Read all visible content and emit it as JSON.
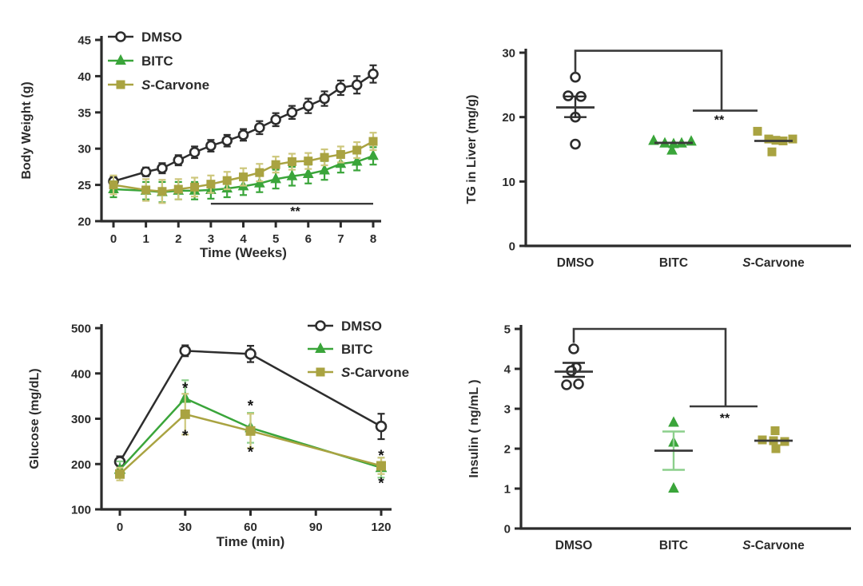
{
  "figure": {
    "background": "#ffffff",
    "colors": {
      "dmso": "#2d2d2d",
      "bitc": "#3aa53a",
      "bitc_light": "#8ccf8c",
      "scarvone": "#a9a341",
      "scarvone_light": "#cdc77c",
      "axis": "#2b2b2b",
      "stat": "#3a3a3a",
      "annotation": "#141414"
    }
  },
  "chart_data": [
    {
      "id": "body_weight",
      "type": "line",
      "title": "",
      "ylabel": "Body Weight (g)",
      "xlabel": "Time (Weeks)",
      "ylim": [
        20,
        45
      ],
      "yticks": [
        20,
        25,
        30,
        35,
        40,
        45
      ],
      "xlim": [
        0,
        8
      ],
      "xticks": [
        0,
        1,
        2,
        3,
        4,
        5,
        6,
        7,
        8
      ],
      "legend_position": "top-left-inside",
      "x": [
        0,
        1,
        1.5,
        2,
        2.5,
        3,
        3.5,
        4,
        4.5,
        5,
        5.5,
        6,
        6.5,
        7,
        7.5,
        8
      ],
      "series": [
        {
          "name": "DMSO",
          "marker": "circle-open",
          "color_key": "dmso",
          "error_color_key": "dmso",
          "values": [
            25.5,
            26.8,
            27.3,
            28.4,
            29.5,
            30.4,
            31.1,
            31.9,
            32.9,
            34.0,
            35.0,
            35.9,
            36.9,
            38.4,
            38.8,
            40.3
          ],
          "errors": [
            0.6,
            0.6,
            0.7,
            0.7,
            0.8,
            0.8,
            0.8,
            0.8,
            0.9,
            0.9,
            0.9,
            1.0,
            1.0,
            1.0,
            1.2,
            1.2
          ]
        },
        {
          "name": "BITC",
          "marker": "triangle",
          "color_key": "bitc",
          "error_color_key": "bitc",
          "values": [
            24.4,
            24.2,
            24.0,
            24.2,
            24.2,
            24.3,
            24.5,
            24.8,
            25.2,
            25.8,
            26.2,
            26.5,
            27.0,
            27.9,
            28.2,
            29.0
          ],
          "errors": [
            1.1,
            1.2,
            1.4,
            1.2,
            1.2,
            1.2,
            1.2,
            1.2,
            1.2,
            1.3,
            1.3,
            1.3,
            1.3,
            1.2,
            1.2,
            1.2
          ]
        },
        {
          "name": "S-Carvone",
          "marker": "square",
          "color_key": "scarvone",
          "error_color_key": "scarvone_light",
          "values": [
            25.0,
            24.3,
            24.1,
            24.4,
            24.7,
            25.1,
            25.6,
            26.1,
            26.7,
            27.8,
            28.2,
            28.3,
            28.8,
            29.2,
            29.8,
            31.0
          ],
          "errors": [
            1.3,
            1.5,
            1.6,
            1.4,
            1.3,
            1.2,
            1.2,
            1.2,
            1.2,
            1.1,
            1.1,
            1.1,
            1.1,
            1.1,
            1.1,
            1.2
          ]
        }
      ],
      "significance": {
        "label": "**",
        "x1": 3,
        "x2": 8,
        "y": 22.4,
        "label_x": 5.6,
        "label_y": 21.3
      }
    },
    {
      "id": "tg_liver",
      "type": "scatter",
      "title": "",
      "ylabel": "TG in Liver (mg/g)",
      "ylim": [
        0,
        30
      ],
      "yticks": [
        0,
        10,
        20,
        30
      ],
      "categories": [
        "DMSO",
        "BITC",
        "S-Carvone"
      ],
      "groups": [
        {
          "name": "DMSO",
          "marker": "circle-open",
          "color_key": "dmso",
          "error_color_key": "dmso",
          "points": [
            [
              0,
              26.2
            ],
            [
              -9,
              23.3
            ],
            [
              7,
              23.2
            ],
            [
              0,
              20.0
            ],
            [
              0,
              15.8
            ]
          ],
          "mean": 21.5,
          "err_low": 20.0,
          "err_high": 23.2
        },
        {
          "name": "BITC",
          "marker": "triangle",
          "color_key": "bitc",
          "points": [
            [
              -25,
              16.3
            ],
            [
              -11,
              15.9
            ],
            [
              0,
              15.8
            ],
            [
              10,
              15.9
            ],
            [
              22,
              16.2
            ],
            [
              -2,
              14.8
            ]
          ],
          "mean": 16.0
        },
        {
          "name": "S-Carvone",
          "marker": "square",
          "color_key": "scarvone",
          "points": [
            [
              -20,
              17.8
            ],
            [
              -6,
              16.6
            ],
            [
              3,
              16.4
            ],
            [
              12,
              16.3
            ],
            [
              24,
              16.6
            ],
            [
              -2,
              14.6
            ]
          ],
          "mean": 16.3
        }
      ],
      "significance": {
        "label": "**",
        "top_y": 30.3,
        "stub_bottom_y": 26.8,
        "drop_y": 21.0,
        "label_y": 19.5
      }
    },
    {
      "id": "glucose",
      "type": "line",
      "title": "",
      "ylabel": "Glucose (mg/dL)",
      "xlabel": "Time (min)",
      "ylim": [
        100,
        500
      ],
      "yticks": [
        100,
        200,
        300,
        400,
        500
      ],
      "xlim": [
        0,
        120
      ],
      "xticks": [
        0,
        30,
        60,
        90,
        120
      ],
      "legend_position": "top-right-inside",
      "x": [
        0,
        30,
        60,
        120
      ],
      "series": [
        {
          "name": "DMSO",
          "marker": "circle-open",
          "color_key": "dmso",
          "error_color_key": "dmso",
          "values": [
            205,
            450,
            443,
            283
          ],
          "errors": [
            12,
            12,
            18,
            28
          ]
        },
        {
          "name": "BITC",
          "marker": "triangle",
          "color_key": "bitc",
          "error_color_key": "bitc_light",
          "values": [
            188,
            345,
            280,
            192
          ],
          "errors": [
            18,
            40,
            33,
            22
          ]
        },
        {
          "name": "S-Carvone",
          "marker": "square",
          "color_key": "scarvone",
          "error_color_key": "scarvone_light",
          "values": [
            178,
            310,
            273,
            196
          ],
          "errors": [
            14,
            45,
            38,
            18
          ]
        }
      ],
      "annotations": [
        {
          "x": 30,
          "y": 367,
          "text": "*"
        },
        {
          "x": 30,
          "y": 262,
          "text": "*"
        },
        {
          "x": 60,
          "y": 328,
          "text": "*"
        },
        {
          "x": 60,
          "y": 226,
          "text": "*"
        },
        {
          "x": 120,
          "y": 218,
          "text": "*"
        },
        {
          "x": 120,
          "y": 157,
          "text": "*"
        }
      ]
    },
    {
      "id": "insulin",
      "type": "scatter",
      "title": "",
      "ylabel": "Insulin ( ng/mL )",
      "ylim": [
        0,
        5
      ],
      "yticks": [
        0,
        1,
        2,
        3,
        4,
        5
      ],
      "categories": [
        "DMSO",
        "BITC",
        "S-Carvone"
      ],
      "groups": [
        {
          "name": "DMSO",
          "marker": "circle-open",
          "color_key": "dmso",
          "error_color_key": "dmso",
          "points": [
            [
              0,
              4.5
            ],
            [
              3,
              4.03
            ],
            [
              -3,
              3.95
            ],
            [
              -9,
              3.6
            ],
            [
              6,
              3.62
            ]
          ],
          "mean": 3.93,
          "err_low": 3.8,
          "err_high": 4.15
        },
        {
          "name": "BITC",
          "marker": "triangle",
          "color_key": "bitc",
          "error_color_key": "bitc_light",
          "points": [
            [
              0,
              2.65
            ],
            [
              0,
              2.15
            ],
            [
              0,
              1.0
            ]
          ],
          "mean": 1.95,
          "err_low": 1.47,
          "err_high": 2.43
        },
        {
          "name": "S-Carvone",
          "marker": "square",
          "color_key": "scarvone",
          "points": [
            [
              2,
              2.45
            ],
            [
              -14,
              2.22
            ],
            [
              0,
              2.2
            ],
            [
              14,
              2.18
            ],
            [
              3,
              2.0
            ]
          ],
          "mean": 2.2
        }
      ],
      "significance": {
        "label": "**",
        "top_y": 5.0,
        "stub_bottom_y": 4.65,
        "drop_y": 3.06,
        "label_y": 2.76
      }
    }
  ]
}
